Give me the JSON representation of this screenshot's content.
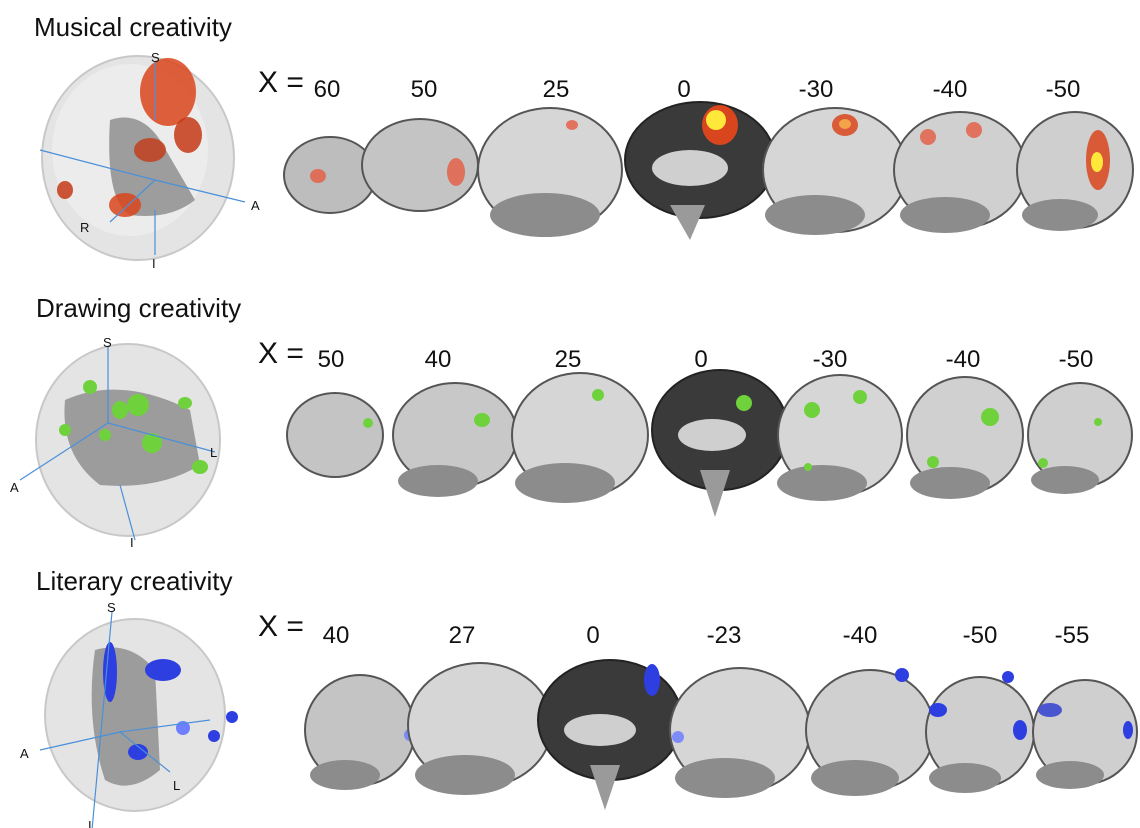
{
  "figure": {
    "x_prefix": "X =",
    "panels": [
      {
        "id": "musical",
        "title": "Musical creativity",
        "blob_color": "#d9451c",
        "highlight_color": "#ffe83a",
        "orientation_labels": [
          "S",
          "A",
          "R",
          "I"
        ],
        "slice_coords": [
          "60",
          "50",
          "25",
          "0",
          "-30",
          "-40",
          "-50"
        ]
      },
      {
        "id": "drawing",
        "title": "Drawing creativity",
        "blob_color": "#6fd23c",
        "highlight_color": "#a8ff7a",
        "orientation_labels": [
          "S",
          "L",
          "A",
          "I"
        ],
        "slice_coords": [
          "50",
          "40",
          "25",
          "0",
          "-30",
          "-40",
          "-50"
        ]
      },
      {
        "id": "literary",
        "title": "Literary creativity",
        "blob_color": "#2d3fe0",
        "highlight_color": "#6f7fff",
        "orientation_labels": [
          "S",
          "A",
          "L",
          "I"
        ],
        "slice_coords": [
          "40",
          "27",
          "0",
          "-23",
          "-40",
          "-50",
          "-55"
        ]
      }
    ]
  }
}
